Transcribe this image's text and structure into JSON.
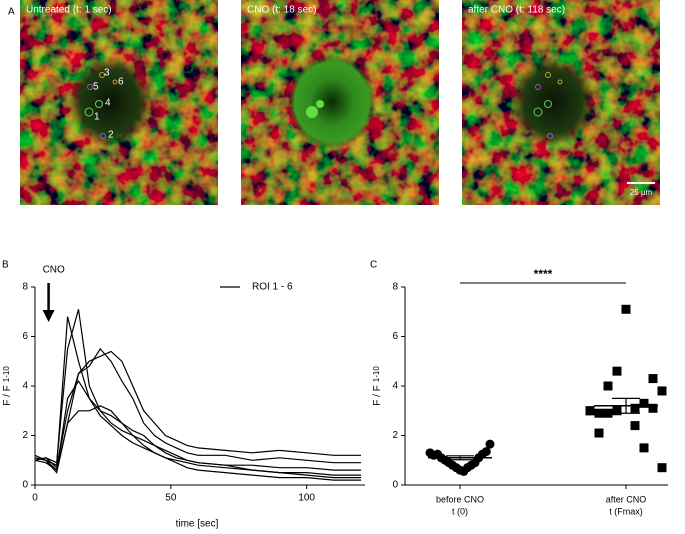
{
  "panels": [
    "A",
    "B",
    "C"
  ],
  "images": [
    {
      "title": "Untreated (t: 1 sec)",
      "roi_labels": [
        "3",
        "6",
        "5",
        "4",
        "1",
        "2"
      ]
    },
    {
      "title": "CNO (t: 18 sec)"
    },
    {
      "title": "after CNO (t: 118 sec)",
      "scale_bar": "25 µm"
    }
  ],
  "chart_data": [
    {
      "type": "line",
      "xlabel": "time [sec]",
      "ylabel": "F / F",
      "ylabel_sub": "1-10",
      "legend": "ROI 1 - 6",
      "color": "#000000",
      "annotation": {
        "text": "CNO",
        "x": 5
      },
      "xlim": [
        0,
        120
      ],
      "xticks": [
        0,
        50,
        100
      ],
      "ylim": [
        0,
        8
      ],
      "yticks": [
        0,
        2,
        4,
        6,
        8
      ],
      "x": [
        0,
        4,
        8,
        12,
        16,
        20,
        24,
        28,
        32,
        36,
        40,
        44,
        48,
        52,
        56,
        60,
        70,
        80,
        90,
        100,
        110,
        120
      ],
      "series": [
        {
          "values": [
            1,
            1.1,
            0.9,
            5.5,
            7.1,
            4.0,
            3.0,
            2.5,
            2.2,
            2.0,
            1.8,
            1.6,
            1.4,
            1.2,
            1.0,
            0.9,
            0.8,
            0.6,
            0.5,
            0.4,
            0.3,
            0.3
          ]
        },
        {
          "values": [
            1.1,
            1.0,
            0.8,
            6.8,
            5.0,
            3.5,
            2.8,
            2.4,
            2.0,
            1.7,
            1.5,
            1.3,
            1.1,
            0.9,
            0.7,
            0.6,
            0.5,
            0.4,
            0.3,
            0.3,
            0.2,
            0.2
          ]
        },
        {
          "values": [
            1,
            1.1,
            0.7,
            3.0,
            4.5,
            5.0,
            5.2,
            5.4,
            5.0,
            4.0,
            3.0,
            2.5,
            2.0,
            1.8,
            1.6,
            1.5,
            1.4,
            1.3,
            1.4,
            1.3,
            1.2,
            1.2
          ]
        },
        {
          "values": [
            1.2,
            1.0,
            0.6,
            2.5,
            4.5,
            4.8,
            5.5,
            5.0,
            4.2,
            3.5,
            2.5,
            2.0,
            1.7,
            1.5,
            1.3,
            1.2,
            1.2,
            1.0,
            1.1,
            1.0,
            0.9,
            0.9
          ]
        },
        {
          "values": [
            1,
            0.9,
            0.6,
            3.5,
            4.2,
            3.5,
            3.0,
            2.8,
            2.5,
            2.2,
            2.0,
            1.6,
            1.3,
            1.1,
            1.0,
            0.9,
            0.8,
            0.8,
            0.7,
            0.7,
            0.6,
            0.6
          ]
        },
        {
          "values": [
            1.1,
            1.0,
            0.5,
            2.5,
            3.0,
            3.0,
            3.2,
            3.0,
            2.5,
            2.0,
            1.6,
            1.3,
            1.1,
            1.0,
            0.9,
            0.8,
            0.7,
            0.6,
            0.5,
            0.5,
            0.4,
            0.4
          ]
        }
      ]
    },
    {
      "type": "scatter",
      "ylabel": "F / F",
      "ylabel_sub": "1-10",
      "significance": "****",
      "ylim": [
        0,
        8
      ],
      "yticks": [
        0,
        2,
        4,
        6,
        8
      ],
      "categories": [
        "before CNO",
        "after CNO"
      ],
      "category_sublabels": [
        "t (0)",
        "t (Fmax)"
      ],
      "means": [
        1.1,
        3.2
      ],
      "sem": [
        0.08,
        0.3
      ],
      "series": [
        {
          "marker": "circle",
          "color": "#000000",
          "values": [
            1.3,
            1.2,
            1.25,
            1.1,
            1.0,
            0.9,
            0.8,
            0.7,
            0.6,
            0.55,
            0.7,
            0.8,
            0.9,
            1.1,
            1.25,
            1.35,
            1.65
          ]
        },
        {
          "marker": "square",
          "color": "#000000",
          "values": [
            3.0,
            3.1,
            2.9,
            3.3,
            4.0,
            4.3,
            4.6,
            3.8,
            7.1,
            3.0,
            2.4,
            2.1,
            1.5,
            2.9,
            3.1,
            3.0,
            0.7
          ]
        }
      ]
    }
  ]
}
